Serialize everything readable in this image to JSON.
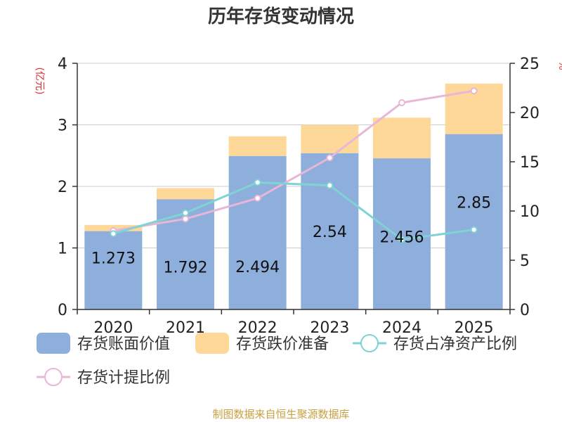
{
  "chart_data": {
    "type": "bar",
    "title": "历年存货变动情况",
    "left_axis_unit": "(亿元)",
    "right_axis_unit": "%",
    "categories": [
      "2020",
      "2021",
      "2022",
      "2023",
      "2024",
      "2025"
    ],
    "left_axis": {
      "ylim": [
        0,
        4
      ],
      "ticks": [
        "0",
        "1",
        "2",
        "3",
        "4"
      ]
    },
    "right_axis": {
      "ylim": [
        0,
        25
      ],
      "ticks": [
        "0",
        "5",
        "10",
        "15",
        "20",
        "25"
      ]
    },
    "grid": true,
    "stacked": true,
    "legend_position": "bottom",
    "series": [
      {
        "name": "存货账面价值",
        "type": "bar",
        "axis": "left",
        "color": "#8eaedb",
        "values": [
          1.273,
          1.792,
          2.494,
          2.54,
          2.456,
          2.85
        ],
        "labels": [
          "1.273",
          "1.792",
          "2.494",
          "2.54",
          "2.456",
          "2.85"
        ]
      },
      {
        "name": "存货跌价准备",
        "type": "bar",
        "axis": "left",
        "color": "#fdd898",
        "values": [
          0.1,
          0.18,
          0.32,
          0.46,
          0.66,
          0.82
        ]
      },
      {
        "name": "存货占净资产比例",
        "type": "line",
        "axis": "right",
        "color": "#7fd3d3",
        "values": [
          7.7,
          9.8,
          12.9,
          12.6,
          7.1,
          8.1
        ]
      },
      {
        "name": "存货计提比例",
        "type": "line",
        "axis": "right",
        "color": "#e8b6d6",
        "values": [
          8.0,
          9.2,
          11.3,
          15.4,
          21.0,
          22.2
        ]
      }
    ],
    "source": "制图数据来自恒生聚源数据库"
  }
}
